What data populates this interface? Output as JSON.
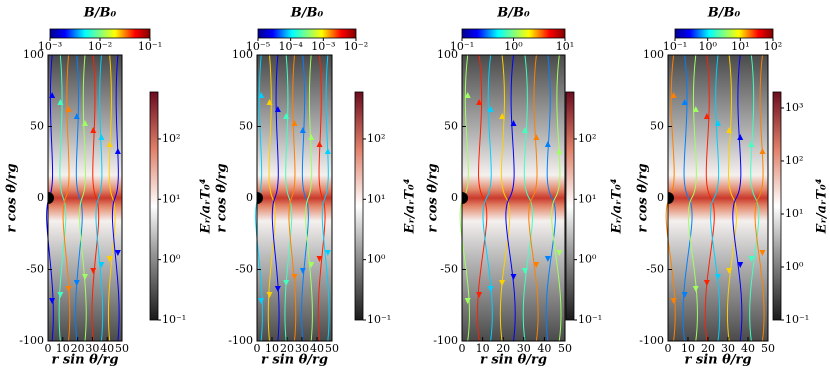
{
  "chart_data": [
    {
      "type": "streamplot",
      "xlabel": "r sin θ/rg",
      "ylabel": "r cos θ/rg",
      "xlim": [
        0,
        50
      ],
      "ylim": [
        -100,
        100
      ],
      "xticks": [
        0,
        10,
        20,
        30,
        40,
        50
      ],
      "yticks": [
        -100,
        -50,
        0,
        50,
        100
      ],
      "colorbar_top": {
        "label": "B/B₀",
        "scale": "log",
        "lim": [
          0.001,
          0.1
        ],
        "ticks": [
          {
            "value": 0.001,
            "label": "10⁻³"
          },
          {
            "value": 0.01,
            "label": "10⁻²"
          },
          {
            "value": 0.1,
            "label": "10⁻¹"
          }
        ]
      },
      "colorbar_right": {
        "label": "Eᵣ/aᵣT₀⁴",
        "scale": "log",
        "lim": [
          0.1,
          600
        ],
        "ticks": [
          {
            "value": 0.1,
            "label": "10⁻¹"
          },
          {
            "value": 1,
            "label": "10⁰"
          },
          {
            "value": 10,
            "label": "10¹"
          },
          {
            "value": 100,
            "label": "10²"
          }
        ]
      }
    },
    {
      "type": "streamplot",
      "xlabel": "r sin θ/rg",
      "ylabel": "r cos θ/rg",
      "xlim": [
        0,
        50
      ],
      "ylim": [
        -100,
        100
      ],
      "xticks": [
        0,
        10,
        20,
        30,
        40,
        50
      ],
      "yticks": [
        -100,
        -50,
        0,
        50,
        100
      ],
      "colorbar_top": {
        "label": "B/B₀",
        "scale": "log",
        "lim": [
          1e-05,
          0.01
        ],
        "ticks": [
          {
            "value": 1e-05,
            "label": "10⁻⁵"
          },
          {
            "value": 0.0001,
            "label": "10⁻⁴"
          },
          {
            "value": 0.001,
            "label": "10⁻³"
          },
          {
            "value": 0.01,
            "label": "10⁻²"
          }
        ]
      },
      "colorbar_right": {
        "label": "Eᵣ/aᵣT₀⁴",
        "scale": "log",
        "lim": [
          0.1,
          600
        ],
        "ticks": [
          {
            "value": 0.1,
            "label": "10⁻¹"
          },
          {
            "value": 1,
            "label": "10⁰"
          },
          {
            "value": 10,
            "label": "10¹"
          },
          {
            "value": 100,
            "label": "10²"
          }
        ]
      }
    },
    {
      "type": "streamplot",
      "xlabel": "r sin θ/rg",
      "ylabel": "r cos θ/rg",
      "xlim": [
        0,
        50
      ],
      "ylim": [
        -100,
        100
      ],
      "xticks": [
        0,
        10,
        20,
        30,
        40,
        50
      ],
      "yticks": [
        -100,
        -50,
        0,
        50,
        100
      ],
      "colorbar_top": {
        "label": "B/B₀",
        "scale": "log",
        "lim": [
          0.1,
          10
        ],
        "ticks": [
          {
            "value": 0.1,
            "label": "10⁻¹"
          },
          {
            "value": 1,
            "label": "10⁰"
          },
          {
            "value": 10,
            "label": "10¹"
          }
        ]
      },
      "colorbar_right": {
        "label": "Eᵣ/aᵣT₀⁴",
        "scale": "log",
        "lim": [
          0.1,
          600
        ],
        "ticks": [
          {
            "value": 0.1,
            "label": "10⁻¹"
          },
          {
            "value": 1,
            "label": "10⁰"
          },
          {
            "value": 10,
            "label": "10¹"
          },
          {
            "value": 100,
            "label": "10²"
          }
        ]
      }
    },
    {
      "type": "streamplot",
      "xlabel": "r sin θ/rg",
      "ylabel": "r cos θ/rg",
      "xlim": [
        0,
        50
      ],
      "ylim": [
        -100,
        100
      ],
      "xticks": [
        0,
        10,
        20,
        30,
        40,
        50
      ],
      "yticks": [
        -100,
        -50,
        0,
        50,
        100
      ],
      "colorbar_top": {
        "label": "B/B₀",
        "scale": "log",
        "lim": [
          0.1,
          100
        ],
        "ticks": [
          {
            "value": 0.1,
            "label": "10⁻¹"
          },
          {
            "value": 1,
            "label": "10⁰"
          },
          {
            "value": 10,
            "label": "10¹"
          },
          {
            "value": 100,
            "label": "10²"
          }
        ]
      },
      "colorbar_right": {
        "label": "Eᵣ/aᵣT₀⁴",
        "scale": "log",
        "lim": [
          0.1,
          2000
        ],
        "ticks": [
          {
            "value": 0.1,
            "label": "10⁻¹"
          },
          {
            "value": 1,
            "label": "10⁰"
          },
          {
            "value": 10,
            "label": "10¹"
          },
          {
            "value": 100,
            "label": "10²"
          },
          {
            "value": 1000,
            "label": "10³"
          }
        ]
      }
    }
  ]
}
